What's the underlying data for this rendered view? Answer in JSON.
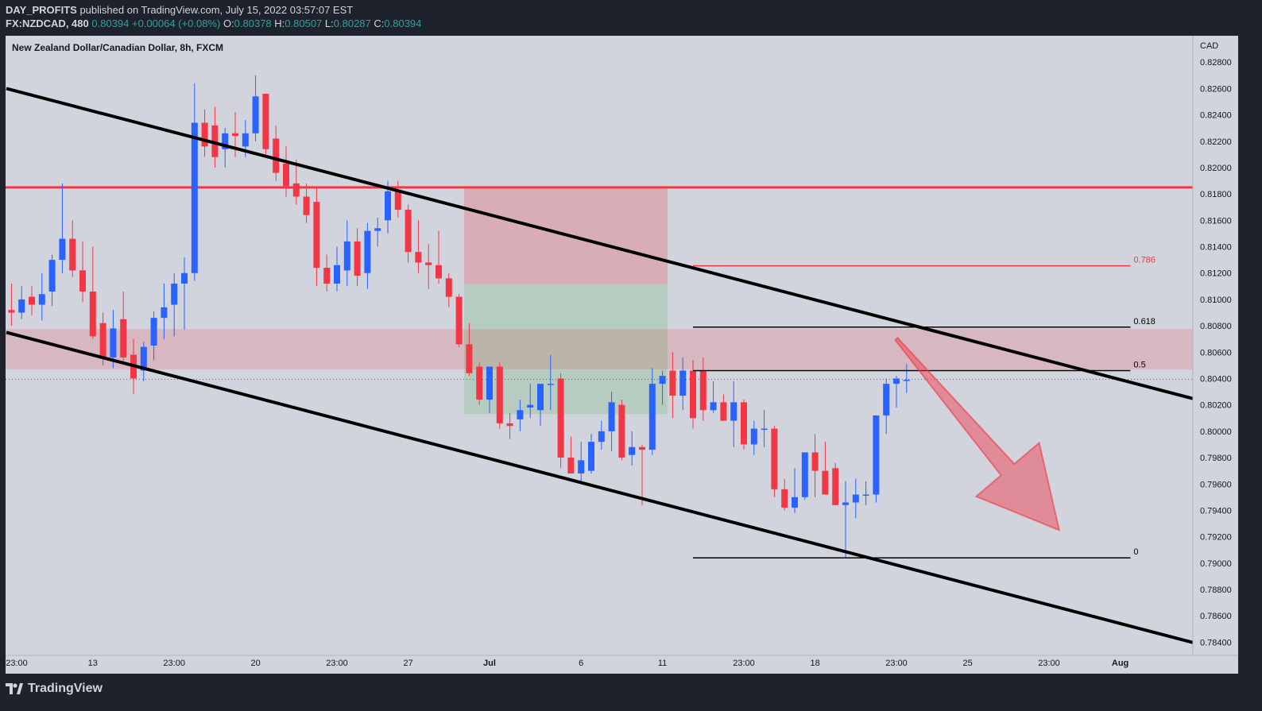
{
  "header": {
    "publisher": "DAY_PROFITS",
    "published_text": "published on TradingView.com, July 15, 2022 03:57:07 EST",
    "symbol": "FX:NZDCAD, 480",
    "last": "0.80394",
    "change": "+0.00064 (+0.08%)",
    "o_label": "O:",
    "o_value": "0.80378",
    "h_label": "H:",
    "h_value": "0.80507",
    "l_label": "L:",
    "l_value": "0.80287",
    "c_label": "C:",
    "c_value": "0.80394"
  },
  "footer": {
    "brand": "TradingView"
  },
  "colors": {
    "up": "#2962ff",
    "down": "#f23645",
    "chart_bg": "#d1d4dc",
    "trendline": "#000000",
    "resistance": "#f23645",
    "zone": "rgba(242,54,69,0.18)",
    "stop_box": "rgba(242,54,69,0.25)",
    "target_box": "rgba(76,175,80,0.20)",
    "arrow": "rgba(242,54,69,0.45)"
  },
  "chart_data": {
    "type": "candlestick",
    "title": "New Zealand Dollar/Canadian Dollar, 8h, FXCM",
    "currency": "CAD",
    "ylim": [
      0.783,
      0.83
    ],
    "y_ticks": [
      "0.82800",
      "0.82600",
      "0.82400",
      "0.82200",
      "0.82000",
      "0.81800",
      "0.81600",
      "0.81400",
      "0.81200",
      "0.81000",
      "0.80800",
      "0.80600",
      "0.80400",
      "0.80200",
      "0.80000",
      "0.79800",
      "0.79600",
      "0.79400",
      "0.79200",
      "0.79000",
      "0.78800",
      "0.78600",
      "0.78400"
    ],
    "x_ticks": [
      {
        "label": "23:00",
        "bar": 0
      },
      {
        "label": "13",
        "bar": 8
      },
      {
        "label": "23:00",
        "bar": 16
      },
      {
        "label": "20",
        "bar": 24
      },
      {
        "label": "23:00",
        "bar": 32
      },
      {
        "label": "27",
        "bar": 39
      },
      {
        "label": "Jul",
        "bar": 47
      },
      {
        "label": "6",
        "bar": 56
      },
      {
        "label": "11",
        "bar": 64
      },
      {
        "label": "23:00",
        "bar": 72
      },
      {
        "label": "18",
        "bar": 79
      },
      {
        "label": "23:00",
        "bar": 87
      },
      {
        "label": "25",
        "bar": 94
      },
      {
        "label": "23:00",
        "bar": 102
      },
      {
        "label": "Aug",
        "bar": 109
      }
    ],
    "candles": [
      [
        0.8092,
        0.8112,
        0.808,
        0.809
      ],
      [
        0.809,
        0.811,
        0.8085,
        0.81
      ],
      [
        0.8102,
        0.811,
        0.8088,
        0.8096
      ],
      [
        0.8096,
        0.812,
        0.8084,
        0.8104
      ],
      [
        0.8106,
        0.8134,
        0.8095,
        0.813
      ],
      [
        0.813,
        0.8188,
        0.812,
        0.8146
      ],
      [
        0.8146,
        0.816,
        0.8117,
        0.8122
      ],
      [
        0.8122,
        0.8144,
        0.8098,
        0.8106
      ],
      [
        0.8106,
        0.814,
        0.807,
        0.8072
      ],
      [
        0.8082,
        0.809,
        0.805,
        0.8056
      ],
      [
        0.8056,
        0.8092,
        0.8048,
        0.8078
      ],
      [
        0.8085,
        0.8106,
        0.8052,
        0.8056
      ],
      [
        0.8058,
        0.807,
        0.8028,
        0.804
      ],
      [
        0.8046,
        0.8068,
        0.8038,
        0.8064
      ],
      [
        0.8065,
        0.8091,
        0.8054,
        0.8086
      ],
      [
        0.8086,
        0.8112,
        0.807,
        0.8094
      ],
      [
        0.8096,
        0.812,
        0.8072,
        0.8112
      ],
      [
        0.8112,
        0.8132,
        0.8077,
        0.812
      ],
      [
        0.812,
        0.8264,
        0.8114,
        0.8234
      ],
      [
        0.8234,
        0.8244,
        0.8208,
        0.8216
      ],
      [
        0.8232,
        0.8246,
        0.82,
        0.8208
      ],
      [
        0.8214,
        0.823,
        0.82,
        0.8226
      ],
      [
        0.8226,
        0.8242,
        0.8208,
        0.8224
      ],
      [
        0.8216,
        0.8236,
        0.8208,
        0.8226
      ],
      [
        0.8226,
        0.827,
        0.822,
        0.8254
      ],
      [
        0.8256,
        0.8256,
        0.821,
        0.8214
      ],
      [
        0.8222,
        0.8232,
        0.819,
        0.8196
      ],
      [
        0.8203,
        0.8216,
        0.8178,
        0.8186
      ],
      [
        0.8188,
        0.8206,
        0.8172,
        0.8178
      ],
      [
        0.8178,
        0.8188,
        0.8158,
        0.8164
      ],
      [
        0.8174,
        0.8184,
        0.811,
        0.8124
      ],
      [
        0.8124,
        0.8134,
        0.8106,
        0.8112
      ],
      [
        0.8112,
        0.814,
        0.8106,
        0.8126
      ],
      [
        0.8122,
        0.816,
        0.811,
        0.8144
      ],
      [
        0.8144,
        0.8154,
        0.811,
        0.8118
      ],
      [
        0.812,
        0.8158,
        0.8108,
        0.8152
      ],
      [
        0.8152,
        0.8162,
        0.814,
        0.8154
      ],
      [
        0.816,
        0.819,
        0.815,
        0.8182
      ],
      [
        0.8182,
        0.819,
        0.8162,
        0.8168
      ],
      [
        0.8168,
        0.8172,
        0.8128,
        0.8136
      ],
      [
        0.8136,
        0.816,
        0.812,
        0.8128
      ],
      [
        0.8128,
        0.8142,
        0.8108,
        0.8126
      ],
      [
        0.8126,
        0.8152,
        0.8112,
        0.8116
      ],
      [
        0.8116,
        0.812,
        0.8094,
        0.8102
      ],
      [
        0.8102,
        0.8104,
        0.8064,
        0.8066
      ],
      [
        0.8066,
        0.8082,
        0.8042,
        0.8044
      ],
      [
        0.8049,
        0.8052,
        0.802,
        0.8024
      ],
      [
        0.8024,
        0.8049,
        0.8014,
        0.8049
      ],
      [
        0.8049,
        0.8052,
        0.8002,
        0.8006
      ],
      [
        0.8006,
        0.8014,
        0.7994,
        0.8004
      ],
      [
        0.8009,
        0.8024,
        0.8,
        0.8016
      ],
      [
        0.8018,
        0.8036,
        0.801,
        0.802
      ],
      [
        0.8016,
        0.8036,
        0.8004,
        0.8036
      ],
      [
        0.8036,
        0.8058,
        0.8016,
        0.8036
      ],
      [
        0.804,
        0.8044,
        0.7972,
        0.798
      ],
      [
        0.798,
        0.7996,
        0.797,
        0.7968
      ],
      [
        0.7968,
        0.7992,
        0.7962,
        0.7978
      ],
      [
        0.797,
        0.7998,
        0.7968,
        0.7992
      ],
      [
        0.7992,
        0.8008,
        0.7986,
        0.8
      ],
      [
        0.8,
        0.803,
        0.7985,
        0.8022
      ],
      [
        0.802,
        0.8024,
        0.7978,
        0.798
      ],
      [
        0.7982,
        0.8,
        0.7974,
        0.7988
      ],
      [
        0.7988,
        0.799,
        0.7944,
        0.7986
      ],
      [
        0.7986,
        0.8048,
        0.7982,
        0.8036
      ],
      [
        0.8036,
        0.8046,
        0.802,
        0.8042
      ],
      [
        0.8046,
        0.806,
        0.801,
        0.8027
      ],
      [
        0.8027,
        0.8056,
        0.8016,
        0.8046
      ],
      [
        0.8046,
        0.8054,
        0.8002,
        0.801
      ],
      [
        0.8046,
        0.8056,
        0.8008,
        0.8016
      ],
      [
        0.8016,
        0.8038,
        0.8014,
        0.8022
      ],
      [
        0.8022,
        0.8028,
        0.8008,
        0.8008
      ],
      [
        0.8008,
        0.8038,
        0.7988,
        0.8022
      ],
      [
        0.8022,
        0.8024,
        0.7986,
        0.799
      ],
      [
        0.799,
        0.8008,
        0.7982,
        0.8002
      ],
      [
        0.8002,
        0.8016,
        0.7988,
        0.8002
      ],
      [
        0.8002,
        0.8004,
        0.795,
        0.7956
      ],
      [
        0.7956,
        0.7964,
        0.794,
        0.7942
      ],
      [
        0.7942,
        0.7972,
        0.7938,
        0.795
      ],
      [
        0.795,
        0.7982,
        0.7948,
        0.7984
      ],
      [
        0.7984,
        0.7998,
        0.795,
        0.797
      ],
      [
        0.797,
        0.7992,
        0.7956,
        0.7952
      ],
      [
        0.7972,
        0.7976,
        0.7946,
        0.7944
      ],
      [
        0.7944,
        0.7962,
        0.7904,
        0.7946
      ],
      [
        0.7946,
        0.7964,
        0.7934,
        0.7952
      ],
      [
        0.7952,
        0.7962,
        0.7944,
        0.7952
      ],
      [
        0.7952,
        0.8012,
        0.7946,
        0.8012
      ],
      [
        0.8012,
        0.804,
        0.7998,
        0.8036
      ],
      [
        0.8036,
        0.8042,
        0.8018,
        0.804
      ],
      [
        0.8039,
        0.8051,
        0.8029,
        0.8039
      ]
    ],
    "annotations": {
      "resistance": 0.8185,
      "zone": [
        0.8047,
        0.80775
      ],
      "short_position": {
        "entry": 0.8112,
        "stop": 0.8185,
        "target": 0.8013,
        "start_bar": 45,
        "end_bar": 65
      },
      "fib_levels": [
        {
          "label": "0.786",
          "value": 0.81255
        },
        {
          "label": "0.618",
          "value": 0.8079
        },
        {
          "label": "0.5",
          "value": 0.8046
        },
        {
          "label": "0",
          "value": 0.7904
        }
      ],
      "fib_bars": [
        67,
        110
      ],
      "upper_channel": [
        {
          "bar": -0.5,
          "price": 0.826
        },
        {
          "bar": 121,
          "price": 0.8015
        }
      ],
      "lower_channel": [
        {
          "bar": -0.5,
          "price": 0.8075
        },
        {
          "bar": 119,
          "price": 0.7834
        }
      ],
      "arrow": {
        "from_bar": 87,
        "from_price": 0.807,
        "to_bar": 103,
        "to_price": 0.7925
      },
      "last_price": 0.80394
    }
  }
}
